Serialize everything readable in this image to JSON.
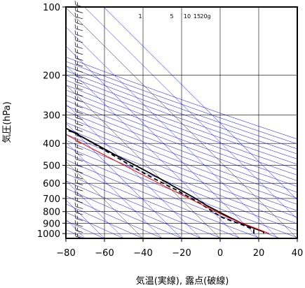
{
  "chart_data": {
    "type": "line",
    "xlabel": "気温(実線), 露点(破線)",
    "ylabel": "気圧(hPa)",
    "xlim": [
      -80,
      40
    ],
    "ylim": [
      1050,
      100
    ],
    "yscale": "log",
    "x_ticks": [
      "−80",
      "−60",
      "−40",
      "−20",
      "0",
      "20",
      "40"
    ],
    "x_tick_values": [
      -80,
      -60,
      -40,
      -20,
      0,
      20,
      40
    ],
    "y_ticks": [
      "100",
      "200",
      "300",
      "400",
      "500",
      "600",
      "700",
      "800",
      "900",
      "1000"
    ],
    "y_tick_values": [
      100,
      200,
      300,
      400,
      500,
      600,
      700,
      800,
      900,
      1000
    ],
    "mixing_ratio_labels": [
      "1",
      "5",
      "10",
      "15",
      "20g"
    ],
    "mixing_ratio_values": [
      1,
      5,
      10,
      15,
      20
    ],
    "grid": true,
    "series": [
      {
        "role": "temperature",
        "style": "solid",
        "color": "#000000",
        "points": [
          [
            25,
            1000
          ],
          [
            26,
            980
          ],
          [
            23,
            950
          ],
          [
            19,
            900
          ],
          [
            16,
            850
          ],
          [
            13,
            800
          ],
          [
            10,
            750
          ],
          [
            8,
            700
          ],
          [
            3,
            620
          ],
          [
            -1,
            560
          ],
          [
            -6,
            500
          ],
          [
            -11,
            450
          ],
          [
            -16,
            400
          ],
          [
            -23,
            340
          ],
          [
            -28,
            310
          ],
          [
            -33,
            280
          ],
          [
            -42,
            240
          ],
          [
            -55,
            200
          ],
          [
            -62,
            180
          ],
          [
            -64,
            165
          ],
          [
            -65,
            150
          ],
          [
            -65,
            140
          ],
          [
            -67,
            125
          ],
          [
            -67,
            112
          ],
          [
            -67,
            100
          ]
        ]
      },
      {
        "role": "dewpoint",
        "style": "dashed",
        "color": "#000000",
        "points": [
          [
            20,
            1000
          ],
          [
            22,
            960
          ],
          [
            19,
            920
          ],
          [
            12,
            850
          ],
          [
            10,
            800
          ],
          [
            8,
            740
          ],
          [
            3,
            650
          ],
          [
            -5,
            550
          ],
          [
            -10,
            480
          ],
          [
            -14,
            430
          ],
          [
            -20,
            360
          ],
          [
            -25,
            345
          ],
          [
            -30,
            340
          ],
          [
            -31,
            320
          ],
          [
            -32,
            295
          ],
          [
            -40,
            260
          ],
          [
            -42,
            250
          ],
          [
            -70,
            248
          ],
          [
            -72,
            245
          ],
          [
            -72,
            160
          ],
          [
            -73,
            148
          ]
        ]
      },
      {
        "role": "reference",
        "style": "solid",
        "color": "#ff0000",
        "points": [
          [
            28,
            1000
          ],
          [
            15,
            850
          ],
          [
            0,
            640
          ],
          [
            -20,
            420
          ],
          [
            -40,
            260
          ],
          [
            -60,
            180
          ],
          [
            -80,
            138
          ]
        ]
      }
    ],
    "wind_barbs_count": 40,
    "colors": {
      "frame": "#000000",
      "isotherms_and_adiabats": "#0000ff",
      "temperature": "#000000",
      "dewpoint": "#000000",
      "reference": "#ff0000"
    }
  }
}
